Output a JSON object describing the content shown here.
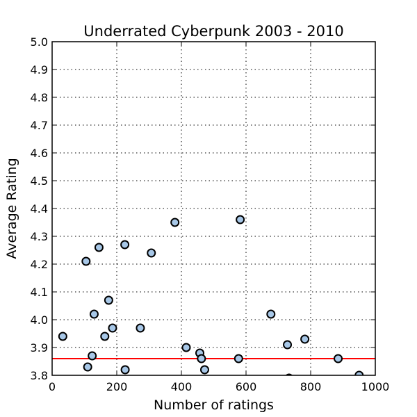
{
  "chart_data": {
    "type": "scatter",
    "title": "Underrated Cyberpunk 2003 - 2010",
    "xlabel": "Number of ratings",
    "ylabel": "Average Rating",
    "xlim": [
      0,
      1000
    ],
    "ylim": [
      3.8,
      5.0
    ],
    "xticks": [
      "0",
      "200",
      "400",
      "600",
      "800",
      "1000"
    ],
    "yticks": [
      "3.8",
      "3.9",
      "4.0",
      "4.1",
      "4.2",
      "4.3",
      "4.4",
      "4.5",
      "4.6",
      "4.7",
      "4.8",
      "4.9",
      "5.0"
    ],
    "grid": true,
    "marker_color": "#a7c7e7",
    "reference_line": {
      "y": 3.86,
      "color": "#ff0000"
    },
    "points": [
      {
        "x": 33,
        "y": 3.94
      },
      {
        "x": 105,
        "y": 4.21
      },
      {
        "x": 110,
        "y": 3.83
      },
      {
        "x": 124,
        "y": 3.87
      },
      {
        "x": 130,
        "y": 4.02
      },
      {
        "x": 145,
        "y": 4.26
      },
      {
        "x": 163,
        "y": 3.94
      },
      {
        "x": 175,
        "y": 4.07
      },
      {
        "x": 187,
        "y": 3.97
      },
      {
        "x": 225,
        "y": 4.27
      },
      {
        "x": 226,
        "y": 3.82
      },
      {
        "x": 273,
        "y": 3.97
      },
      {
        "x": 307,
        "y": 4.24
      },
      {
        "x": 380,
        "y": 4.35
      },
      {
        "x": 415,
        "y": 3.9
      },
      {
        "x": 457,
        "y": 3.88
      },
      {
        "x": 462,
        "y": 3.86
      },
      {
        "x": 472,
        "y": 3.82
      },
      {
        "x": 577,
        "y": 3.86
      },
      {
        "x": 582,
        "y": 4.36
      },
      {
        "x": 677,
        "y": 4.02
      },
      {
        "x": 728,
        "y": 3.91
      },
      {
        "x": 733,
        "y": 3.79
      },
      {
        "x": 782,
        "y": 3.93
      },
      {
        "x": 885,
        "y": 3.86
      },
      {
        "x": 950,
        "y": 3.8
      }
    ]
  }
}
